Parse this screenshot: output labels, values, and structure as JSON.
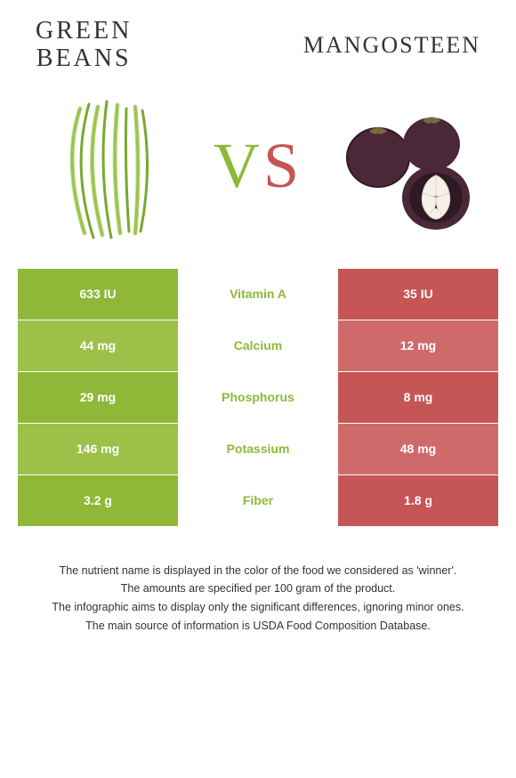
{
  "header": {
    "left_title_line1": "Green",
    "left_title_line2": "Beans",
    "right_title": "Mangosteen"
  },
  "vs": {
    "v": "V",
    "s": "S"
  },
  "colors": {
    "left_primary": "#8fb838",
    "left_alt": "#9cc048",
    "right_primary": "#c65555",
    "right_alt": "#cf6a6a",
    "mid_text_winner_left": "#8fb838",
    "mid_text_winner_right": "#c65555"
  },
  "table": {
    "rows": [
      {
        "left": "633 IU",
        "label": "Vitamin A",
        "right": "35 IU",
        "winner": "left",
        "left_bg": "#8fb838",
        "right_bg": "#c65555"
      },
      {
        "left": "44 mg",
        "label": "Calcium",
        "right": "12 mg",
        "winner": "left",
        "left_bg": "#9cc048",
        "right_bg": "#cf6a6a"
      },
      {
        "left": "29 mg",
        "label": "Phosphorus",
        "right": "8 mg",
        "winner": "left",
        "left_bg": "#8fb838",
        "right_bg": "#c65555"
      },
      {
        "left": "146 mg",
        "label": "Potassium",
        "right": "48 mg",
        "winner": "left",
        "left_bg": "#9cc048",
        "right_bg": "#cf6a6a"
      },
      {
        "left": "3.2 g",
        "label": "Fiber",
        "right": "1.8 g",
        "winner": "left",
        "left_bg": "#8fb838",
        "right_bg": "#c65555"
      }
    ]
  },
  "footer": {
    "line1": "The nutrient name is displayed in the color of the food we considered as 'winner'.",
    "line2": "The amounts are specified per 100 gram of the product.",
    "line3": "The infographic aims to display only the significant differences, ignoring minor ones.",
    "line4": "The main source of information is USDA Food Composition Database."
  },
  "illustrations": {
    "green_beans": {
      "stroke": "#7aa82f",
      "fill": "#a8cf5e"
    },
    "mangosteen": {
      "shell": "#4a2838",
      "shell_dark": "#2f1a24",
      "flesh": "#f5f0e8",
      "stem": "#7a6a3f"
    }
  }
}
